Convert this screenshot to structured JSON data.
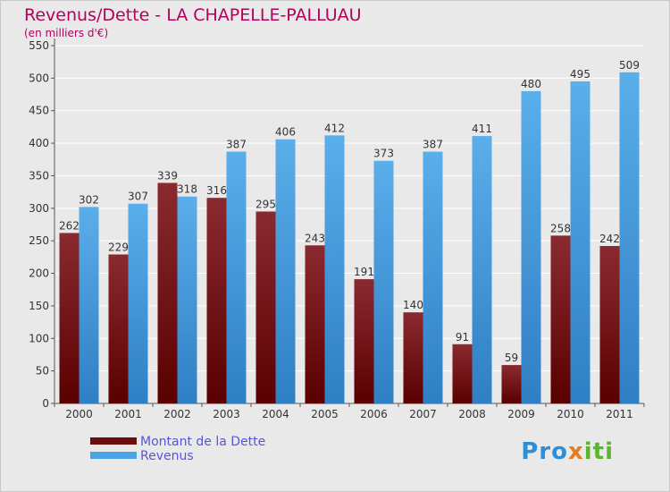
{
  "header": {
    "title": "Revenus/Dette - LA CHAPELLE-PALLUAU",
    "subtitle": "(en milliers d'€)"
  },
  "legend": {
    "items": [
      {
        "label": "Montant de la Dette",
        "color": "#6b0d0d"
      },
      {
        "label": "Revenus",
        "color": "#4aa3e6"
      }
    ]
  },
  "logo": {
    "text": "Proxiti"
  },
  "colors": {
    "title": "#b2005c",
    "debt": "#7a1a1f",
    "revenue": "#4aa3e6",
    "grid": "#ffffff",
    "background": "#e9e9e9"
  },
  "chart_data": {
    "type": "bar",
    "title": "Revenus/Dette - LA CHAPELLE-PALLUAU",
    "subtitle": "(en milliers d'€)",
    "categories": [
      "2000",
      "2001",
      "2002",
      "2003",
      "2004",
      "2005",
      "2006",
      "2007",
      "2008",
      "2009",
      "2010",
      "2011"
    ],
    "series": [
      {
        "name": "Montant de la Dette",
        "values": [
          262,
          229,
          339,
          316,
          295,
          243,
          191,
          140,
          91,
          59,
          258,
          242
        ]
      },
      {
        "name": "Revenus",
        "values": [
          302,
          307,
          318,
          387,
          406,
          412,
          373,
          387,
          411,
          480,
          495,
          509
        ]
      }
    ],
    "ylim": [
      0,
      550
    ],
    "yticks": [
      0,
      50,
      100,
      150,
      200,
      250,
      300,
      350,
      400,
      450,
      500,
      550
    ],
    "grid": true,
    "legend_position": "bottom-left"
  }
}
